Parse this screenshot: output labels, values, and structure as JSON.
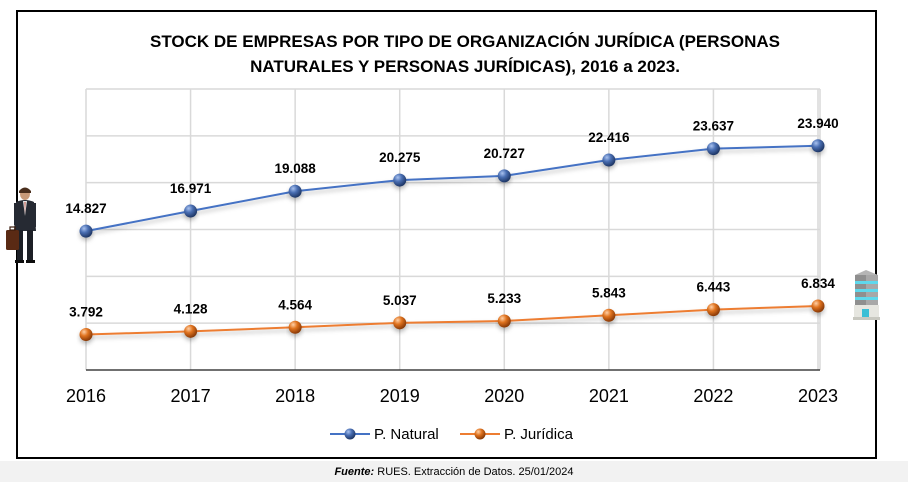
{
  "chart_data": {
    "type": "line",
    "title": "STOCK DE EMPRESAS POR TIPO DE ORGANIZACIÓN JURÍDICA (PERSONAS NATURALES Y PERSONAS JURÍDICAS), 2016 a 2023.",
    "title_lines": [
      "STOCK DE EMPRESAS POR TIPO DE ORGANIZACIÓN JURÍDICA (PERSONAS",
      "NATURALES Y PERSONAS JURÍDICAS), 2016 a 2023."
    ],
    "xlabel": "",
    "ylabel": "",
    "categories": [
      "2016",
      "2017",
      "2018",
      "2019",
      "2020",
      "2021",
      "2022",
      "2023"
    ],
    "ylim": [
      0,
      30000
    ],
    "y_gridlines": [
      0,
      5000,
      10000,
      15000,
      20000,
      25000,
      30000
    ],
    "grid": true,
    "legend_position": "bottom",
    "series": [
      {
        "name": "P. Natural",
        "color": "#4472C4",
        "marker_color": "#3a5f9e",
        "values": [
          14827,
          16971,
          19088,
          20275,
          20727,
          22416,
          23637,
          23940
        ],
        "labels": [
          "14.827",
          "16.971",
          "19.088",
          "20.275",
          "20.727",
          "22.416",
          "23.637",
          "23.940"
        ],
        "icon": "businessman-icon"
      },
      {
        "name": "P. Jurídica",
        "color": "#ED7D31",
        "marker_color": "#d0661c",
        "values": [
          3792,
          4128,
          4564,
          5037,
          5233,
          5843,
          6443,
          6834
        ],
        "labels": [
          "3.792",
          "4.128",
          "4.564",
          "5.037",
          "5.233",
          "5.843",
          "6.443",
          "6.834"
        ],
        "icon": "office-building-icon"
      }
    ]
  },
  "source": {
    "label": "Fuente:",
    "text": " RUES. Extracción de Datos. 25/01/2024"
  }
}
